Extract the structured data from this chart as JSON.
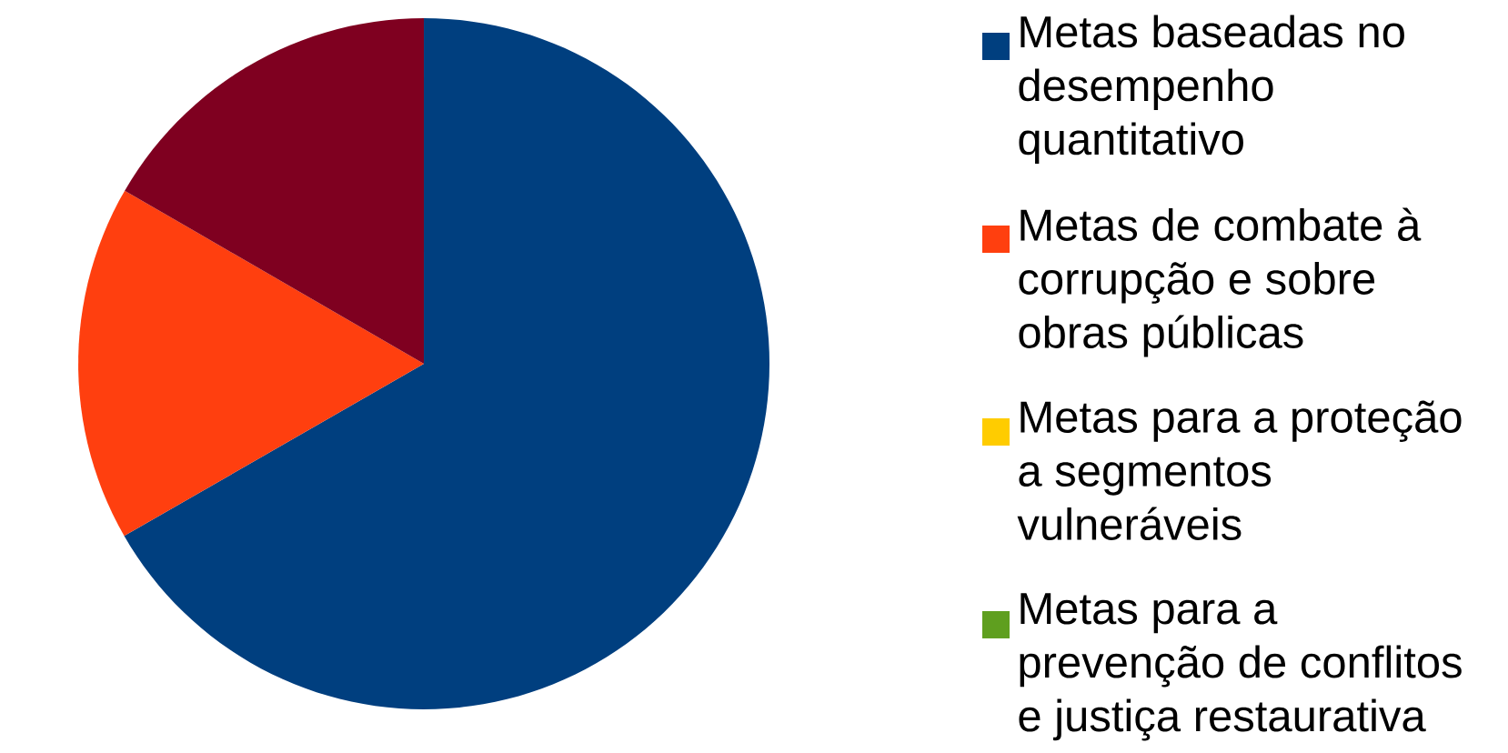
{
  "chart_data": {
    "type": "pie",
    "categories": [
      "Metas baseadas no desempenho quantitativo",
      "Metas de combate à corrupção e sobre obras públicas",
      "Metas para a proteção a segmentos vulneráveis",
      "Metas para a prevenção de conflitos e justiça restaurativa",
      null
    ],
    "values": [
      66.7,
      16.65,
      0,
      0,
      16.65
    ],
    "colors": [
      "#003f7f",
      "#ff3f0f",
      "#ffcc00",
      "#5f9f1f",
      "#7f0020"
    ],
    "legend": "right"
  }
}
